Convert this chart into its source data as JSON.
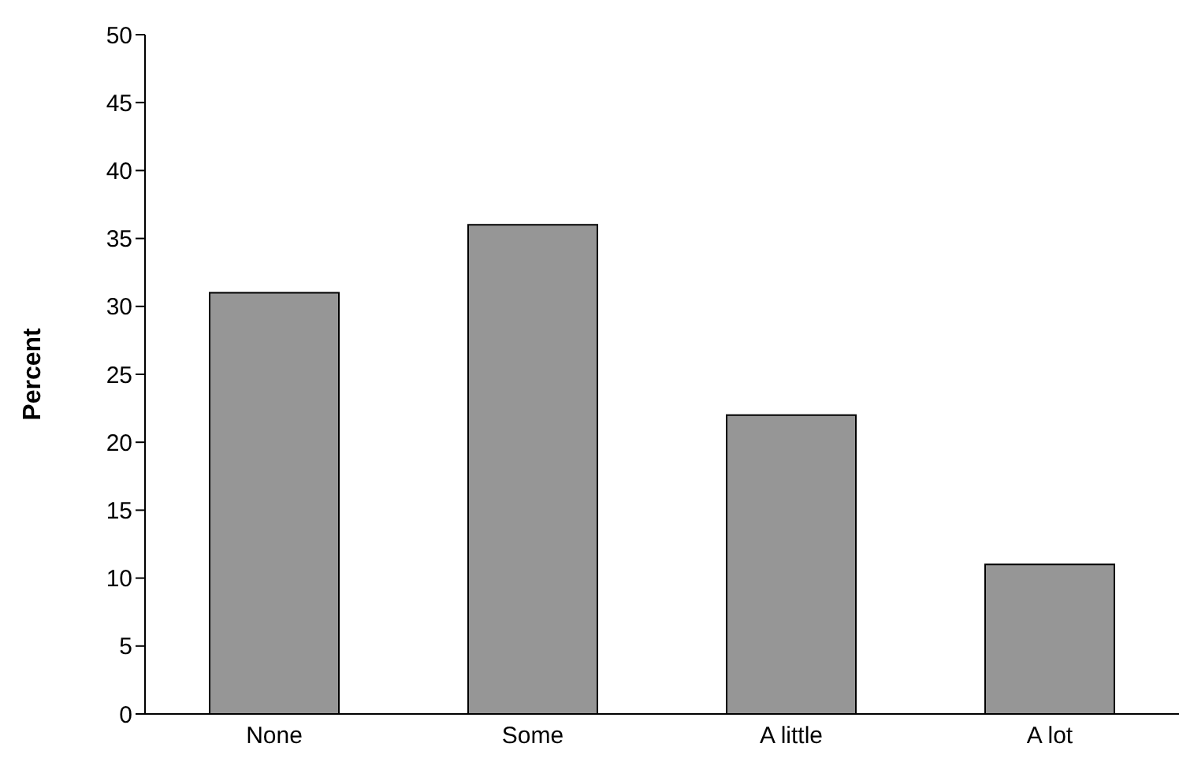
{
  "chart_data": {
    "type": "bar",
    "ylabel": "Percent",
    "categories": [
      "None",
      "Some",
      "A little",
      "A lot"
    ],
    "values": [
      31,
      36,
      22,
      11
    ],
    "color": "#969696",
    "ylim": [
      0,
      50
    ],
    "yticks": [
      0,
      5,
      10,
      15,
      20,
      25,
      30,
      35,
      40,
      45,
      50
    ],
    "grid": false,
    "legend": false
  }
}
